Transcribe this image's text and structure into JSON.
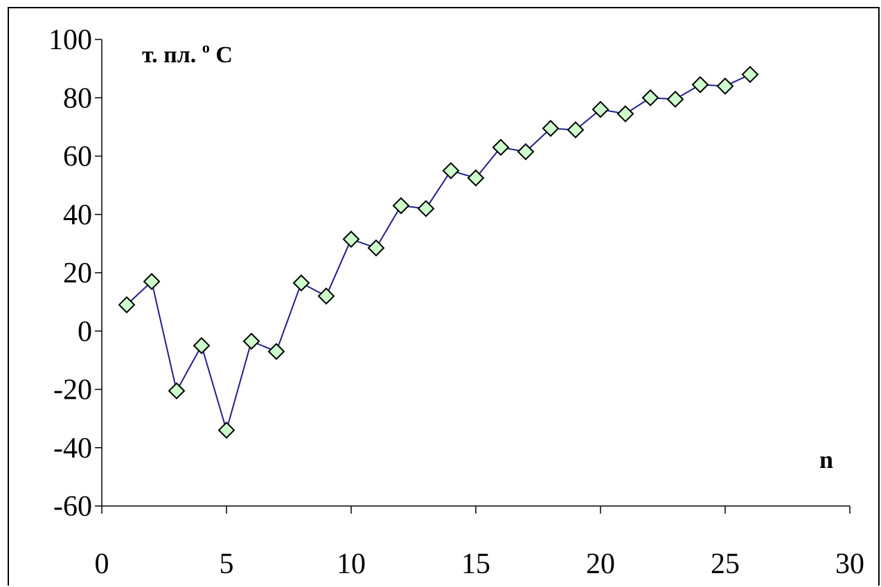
{
  "chart_data": {
    "type": "line",
    "ylabel_main": "т. пл.",
    "ylabel_sup": "o",
    "ylabel_unit": "C",
    "xlabel": "n",
    "xlim": [
      0,
      30
    ],
    "ylim": [
      -60,
      100
    ],
    "x_ticks": [
      "0",
      "5",
      "10",
      "15",
      "20",
      "25",
      "30"
    ],
    "y_ticks": [
      "100",
      "80",
      "60",
      "40",
      "20",
      "0",
      "-20",
      "-40",
      "-60"
    ],
    "grid": false,
    "legend": "none",
    "line_color": "#1f1f8f",
    "marker_fill": "#ccffcc",
    "marker": "diamond",
    "series": [
      {
        "x": [
          1,
          2,
          3,
          4,
          5,
          6,
          7,
          8,
          9,
          10,
          11,
          12,
          13,
          14,
          15,
          16,
          17,
          18,
          19,
          20,
          21,
          22,
          23,
          24,
          25,
          26
        ],
        "values": [
          9,
          17,
          -20.5,
          -5,
          -34,
          -3.5,
          -7,
          16.5,
          12,
          31.5,
          28.5,
          43,
          42,
          55,
          52.5,
          63,
          61.5,
          69.5,
          69,
          76,
          74.5,
          80,
          79.5,
          84.5,
          84,
          88
        ]
      }
    ]
  }
}
